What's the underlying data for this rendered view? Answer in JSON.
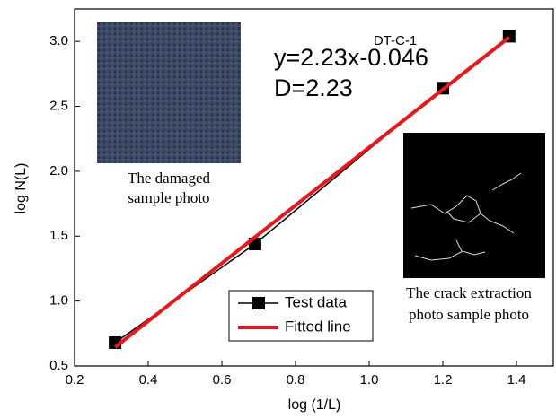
{
  "chart_data": {
    "type": "line",
    "x_label": "log (1/L)",
    "y_label": "log N(L)",
    "xlim": [
      0.2,
      1.5
    ],
    "ylim": [
      0.5,
      3.25
    ],
    "xticks": [
      0.2,
      0.4,
      0.6,
      0.8,
      {
        "value": 1,
        "label": "1.0"
      },
      1.2,
      1.4
    ],
    "yticks": [
      0.5,
      {
        "value": 1,
        "label": "1.0"
      },
      1.5,
      {
        "value": 2,
        "label": "2.0"
      },
      2.5,
      {
        "value": 3,
        "label": "3.0"
      }
    ],
    "legend": "lower-center",
    "series": [
      {
        "name": "Test data",
        "color": "#000000",
        "marker": "square",
        "x": [
          0.31,
          0.69,
          1.2,
          1.38
        ],
        "values": [
          0.68,
          1.44,
          2.64,
          3.04
        ]
      },
      {
        "name": "Fitted line",
        "color": "#e8171b",
        "x": [
          0.31,
          1.38
        ],
        "values": [
          0.645,
          3.031
        ]
      }
    ],
    "annotations": {
      "equation": "y=2.23x-0.046",
      "fractal_dimension": "D=2.23",
      "sample_label": "DT-C-1",
      "damaged_caption": [
        "The damaged",
        "sample photo"
      ],
      "crack_caption": [
        "The crack extraction",
        "photo sample photo"
      ]
    }
  }
}
